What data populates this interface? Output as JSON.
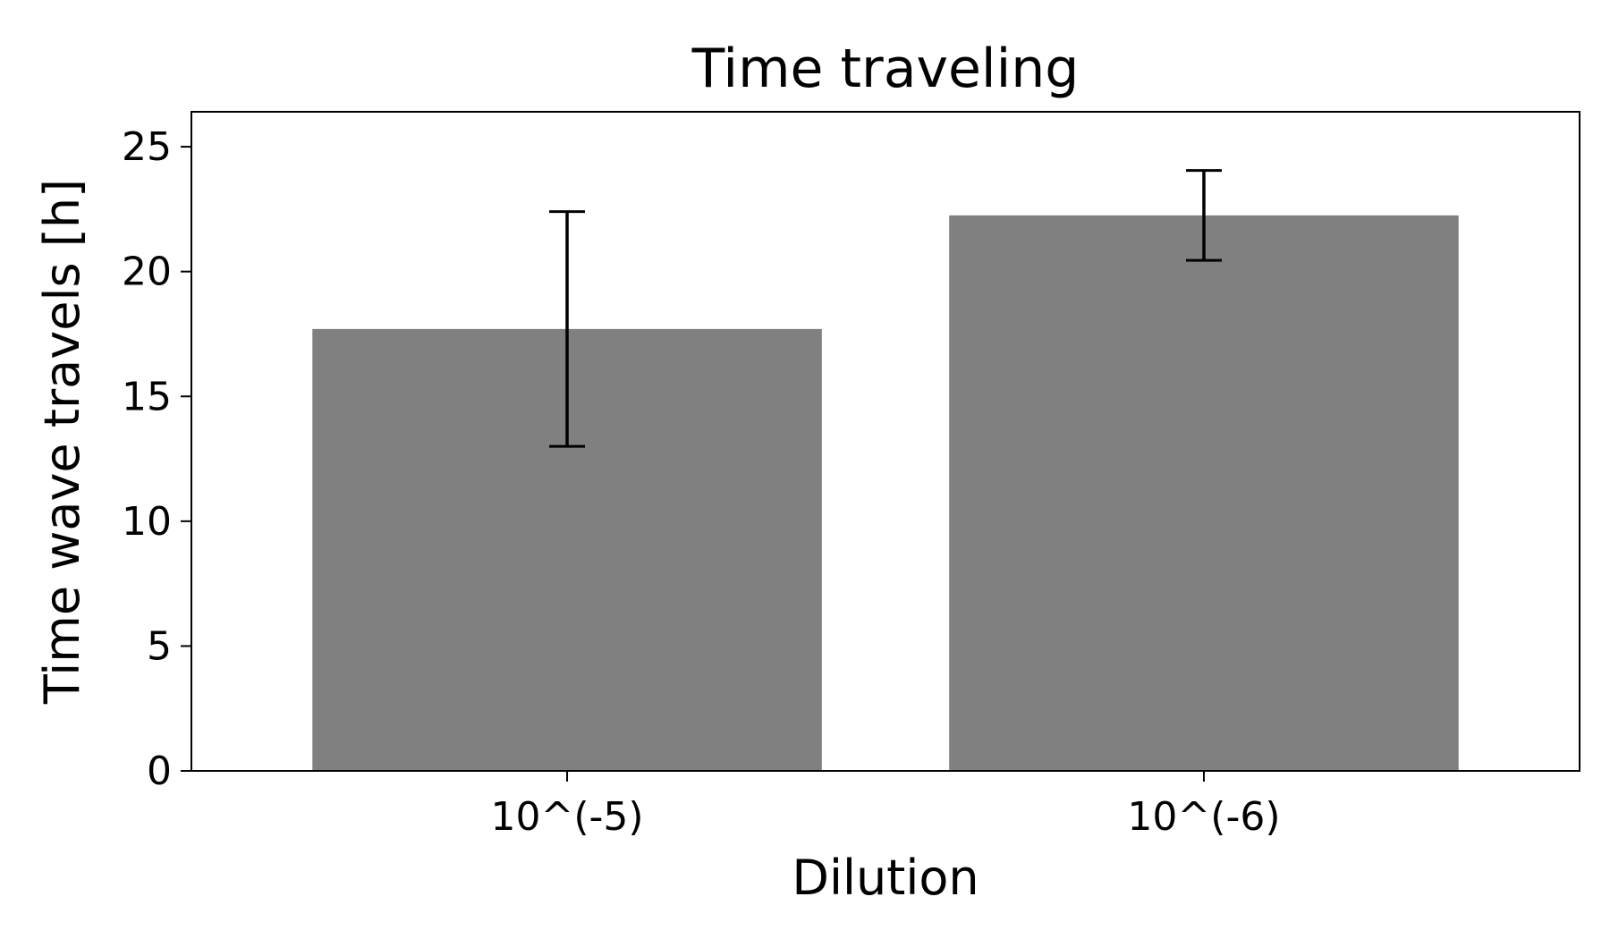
{
  "chart_data": {
    "type": "bar",
    "title": "Time traveling",
    "xlabel": "Dilution",
    "ylabel": "Time wave travels [h]",
    "categories": [
      "10^(-5)",
      "10^(-6)"
    ],
    "values": [
      17.7,
      22.25
    ],
    "error": [
      4.7,
      1.8
    ],
    "ylim": [
      0,
      26.4
    ],
    "yticks": [
      0,
      5,
      10,
      15,
      20,
      25
    ],
    "grid": false,
    "legend": "none",
    "bar_color": "#808080",
    "error_color": "#000000"
  }
}
